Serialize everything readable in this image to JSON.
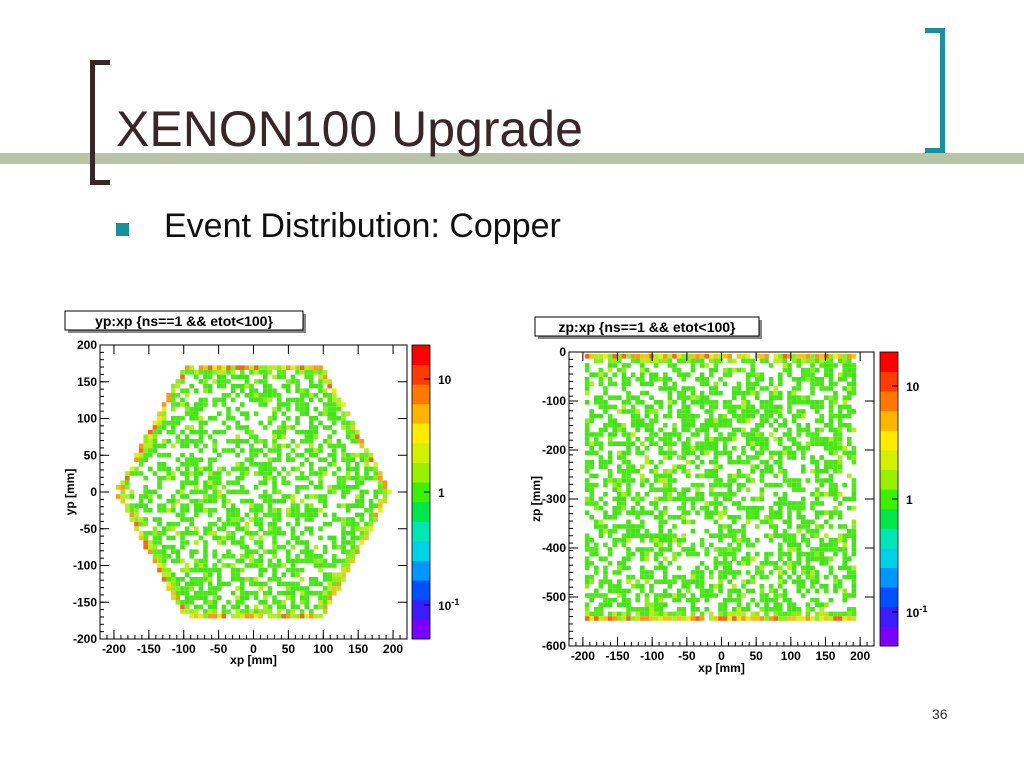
{
  "slide": {
    "title": "XENON100 Upgrade",
    "bullet": "Event Distribution: Copper",
    "slide_number": "36"
  },
  "colors": {
    "title_text": "#3a2626",
    "accent_teal": "#1b8f9c",
    "rule_olive": "#b9c3a6"
  },
  "chart_data": [
    {
      "type": "heatmap",
      "title": "yp:xp {ns==1 && etot<100}",
      "xlabel": "xp [mm]",
      "ylabel": "yp [mm]",
      "xlim": [
        -220,
        220
      ],
      "ylim": [
        -200,
        200
      ],
      "xticks": [
        -200,
        -150,
        -100,
        -50,
        0,
        50,
        100,
        150,
        200
      ],
      "xtick_labels": [
        "-200",
        "-150",
        "-100",
        "-50",
        "0",
        "50",
        "100",
        "150",
        "200"
      ],
      "yticks": [
        -200,
        -150,
        -100,
        -50,
        0,
        50,
        100,
        150,
        200
      ],
      "ytick_labels": [
        "-200",
        "-150",
        "-100",
        "-50",
        "0",
        "50",
        "100",
        "150",
        "200"
      ],
      "region": {
        "shape": "hexagon",
        "vertices": [
          [
            -198,
            0
          ],
          [
            -99,
            172
          ],
          [
            99,
            172
          ],
          [
            198,
            0
          ],
          [
            99,
            -172
          ],
          [
            -99,
            -172
          ]
        ]
      },
      "colorbar": {
        "scale": "log",
        "range": [
          0.05,
          20
        ],
        "ticks": [
          0.1,
          1,
          10
        ],
        "tick_labels": [
          "10-1",
          "1",
          "10"
        ]
      },
      "description": "events fill the hexagon with ~1 count per bin (green), higher counts (yellow-red) concentrated along the hexagon edges"
    },
    {
      "type": "heatmap",
      "title": "zp:xp {ns==1 && etot<100}",
      "xlabel": "xp [mm]",
      "ylabel": "zp [mm]",
      "xlim": [
        -220,
        220
      ],
      "ylim": [
        -600,
        0
      ],
      "xticks": [
        -200,
        -150,
        -100,
        -50,
        0,
        50,
        100,
        150,
        200
      ],
      "xtick_labels": [
        "-200",
        "-150",
        "-100",
        "-50",
        "0",
        "50",
        "100",
        "150",
        "200"
      ],
      "yticks": [
        -600,
        -500,
        -400,
        -300,
        -200,
        -100,
        0
      ],
      "ytick_labels": [
        "-600",
        "-500",
        "-400",
        "-300",
        "-200",
        "-100",
        "0"
      ],
      "region": {
        "shape": "rectangle",
        "x": [
          -195,
          195
        ],
        "y": [
          -550,
          -2
        ]
      },
      "colorbar": {
        "scale": "log",
        "range": [
          0.05,
          20
        ],
        "ticks": [
          0.1,
          1,
          10
        ],
        "tick_labels": [
          "10-1",
          "1",
          "10"
        ]
      },
      "description": "events fill the rectangle with ~1 count per bin, higher counts near the top (zp ~ 0) and bottom (zp ~ -550) surfaces"
    }
  ]
}
